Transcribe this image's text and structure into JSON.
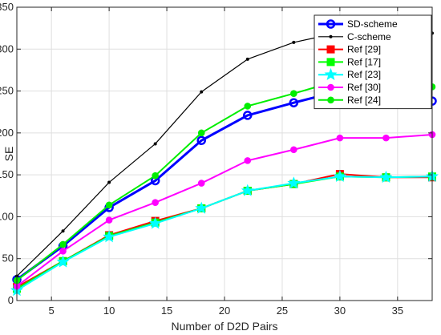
{
  "chart_data": {
    "type": "line",
    "title": "",
    "xlabel": "Number of D2D Pairs",
    "ylabel": "SE",
    "x": [
      2,
      6,
      10,
      14,
      18,
      22,
      26,
      30,
      34,
      38
    ],
    "xlim": [
      2,
      38
    ],
    "ylim": [
      0,
      350
    ],
    "xticks": [
      5,
      10,
      15,
      20,
      25,
      30,
      35
    ],
    "yticks": [
      0,
      50,
      100,
      150,
      200,
      250,
      300,
      350
    ],
    "grid": true,
    "legend_position": "top-right",
    "series": [
      {
        "name": "SD-scheme",
        "color": "#0000ff",
        "marker": "circle",
        "values": [
          25,
          65,
          111,
          143,
          191,
          221,
          236,
          250,
          243,
          238
        ]
      },
      {
        "name": "C-scheme",
        "color": "#000000",
        "marker": "dot",
        "values": [
          29,
          83,
          141,
          187,
          249,
          288,
          308,
          320,
          322,
          319
        ]
      },
      {
        "name": "Ref [29]",
        "color": "#ff0000",
        "marker": "square",
        "values": [
          16,
          47,
          78,
          95,
          110,
          131,
          139,
          151,
          147,
          147
        ]
      },
      {
        "name": "Ref [17]",
        "color": "#00ff00",
        "marker": "square",
        "values": [
          14,
          47,
          77,
          93,
          110,
          131,
          139,
          148,
          147,
          148
        ]
      },
      {
        "name": "Ref [23]",
        "color": "#00ffff",
        "marker": "star",
        "values": [
          12,
          46,
          76,
          92,
          110,
          131,
          140,
          148,
          147,
          148
        ]
      },
      {
        "name": "Ref [30]",
        "color": "#ff00ff",
        "marker": "filled-circle",
        "values": [
          17,
          59,
          96,
          117,
          140,
          167,
          180,
          194,
          194,
          198
        ]
      },
      {
        "name": "Ref [24]",
        "color": "#00ee00",
        "marker": "filled-circle",
        "values": [
          24,
          67,
          114,
          149,
          200,
          232,
          247,
          263,
          258,
          255
        ]
      }
    ]
  }
}
